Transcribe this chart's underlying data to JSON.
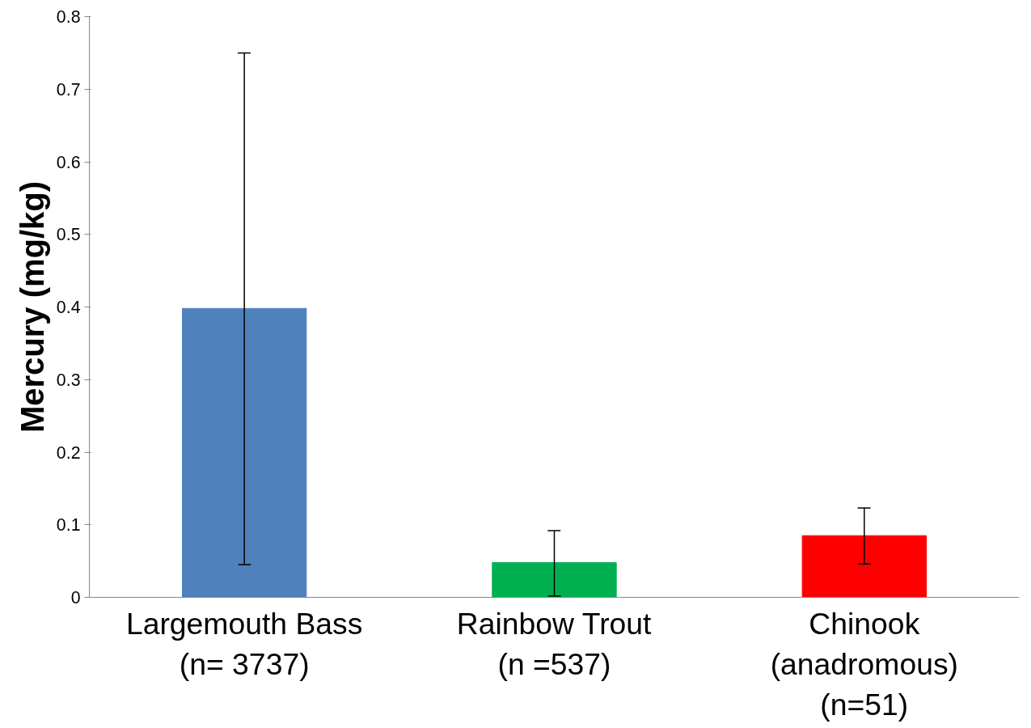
{
  "chart_data": {
    "type": "bar",
    "ylabel": "Mercury (mg/kg)",
    "categories": [
      "Largemouth Bass\n(n= 3737)",
      "Rainbow Trout\n(n =537)",
      "Chinook\n(anadromous)\n(n=51)"
    ],
    "values": [
      0.398,
      0.048,
      0.085
    ],
    "colors": [
      "#4f81bd",
      "#00b050",
      "#ff0000"
    ],
    "errors": [
      [
        0.045,
        0.75
      ],
      [
        0.002,
        0.092
      ],
      [
        0.046,
        0.123
      ]
    ],
    "ylim": [
      0,
      0.8
    ],
    "yticks": [
      0,
      0.1,
      0.2,
      0.3,
      0.4,
      0.5,
      0.6,
      0.7,
      0.8
    ],
    "grid": false
  }
}
